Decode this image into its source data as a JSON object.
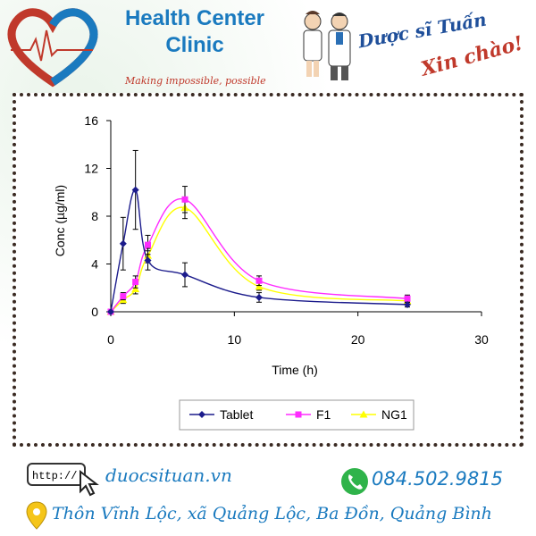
{
  "header": {
    "brand_line1": "Health Center",
    "brand_line2": "Clinic",
    "tagline": "Making impossible, possible",
    "greeting_name": "Dược sĩ Tuấn",
    "greeting_hello": "Xin chào!"
  },
  "footer": {
    "url_prefix": "http://",
    "website": "duocsituan.vn",
    "phone": "084.502.9815",
    "address": "Thôn Vĩnh Lộc, xã Quảng Lộc, Ba Đồn, Quảng Bình"
  },
  "colors": {
    "tablet": "#1c1c8c",
    "f1": "#ff2bff",
    "ng1": "#ffff00",
    "accent": "#1a7abf"
  },
  "chart_data": {
    "type": "line",
    "xlabel": "Time (h)",
    "ylabel": "Conc (µg/ml)",
    "xlim": [
      0,
      30
    ],
    "ylim": [
      0,
      16
    ],
    "xticks": [
      0,
      10,
      20,
      30
    ],
    "yticks": [
      0,
      4,
      8,
      12,
      16
    ],
    "grid": false,
    "legend_position": "bottom",
    "series": [
      {
        "name": "Tablet",
        "marker": "diamond",
        "color": "#1c1c8c",
        "x": [
          0,
          1,
          2,
          3,
          6,
          12,
          24
        ],
        "y": [
          0,
          5.7,
          10.2,
          4.3,
          3.1,
          1.2,
          0.6
        ],
        "err": [
          0,
          2.2,
          3.3,
          0.8,
          1.0,
          0.4,
          0.2
        ]
      },
      {
        "name": "F1",
        "marker": "square",
        "color": "#ff2bff",
        "x": [
          0,
          1,
          2,
          3,
          6,
          12,
          24
        ],
        "y": [
          0,
          1.3,
          2.5,
          5.6,
          9.4,
          2.6,
          1.1
        ],
        "err": [
          0,
          0.3,
          0.5,
          0.8,
          1.1,
          0.4,
          0.3
        ]
      },
      {
        "name": "NG1",
        "marker": "triangle",
        "color": "#ffff00",
        "x": [
          0,
          1,
          2,
          3,
          6,
          12,
          24
        ],
        "y": [
          0,
          1.0,
          1.9,
          4.7,
          8.7,
          2.1,
          0.9
        ],
        "err": [
          0,
          0.3,
          0.4,
          0.6,
          0.9,
          0.3,
          0.2
        ]
      }
    ]
  }
}
